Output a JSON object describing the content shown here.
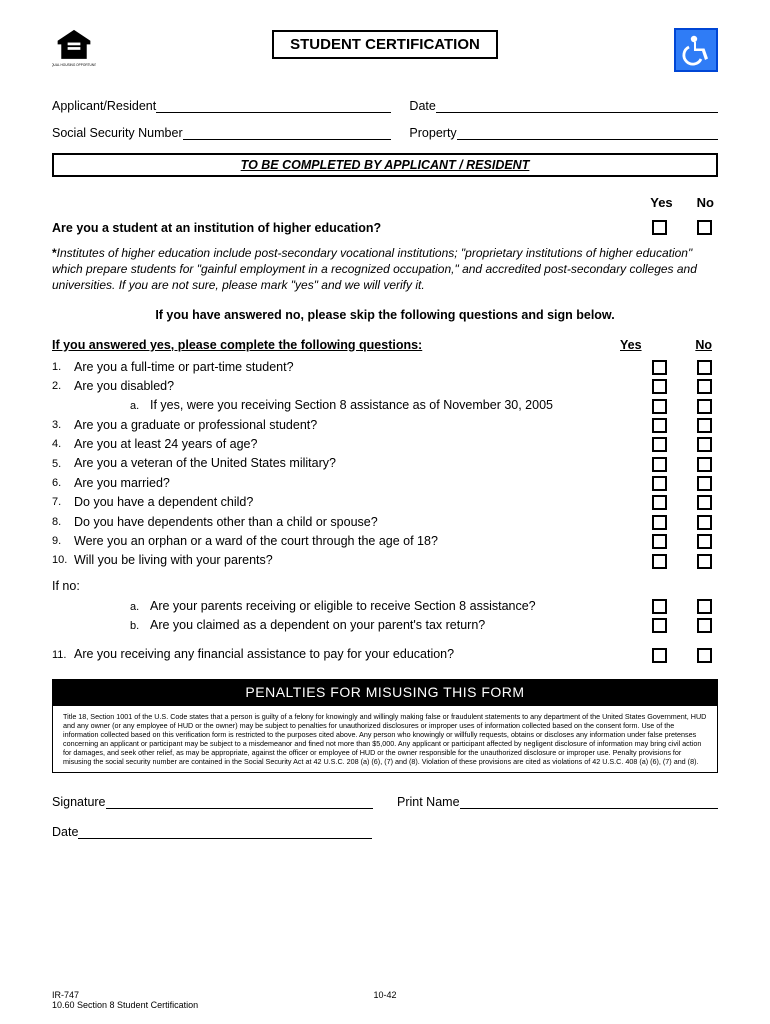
{
  "title": "STUDENT CERTIFICATION",
  "fields": {
    "applicant": "Applicant/Resident",
    "date": "Date",
    "ssn": "Social Security Number",
    "property": "Property"
  },
  "section_bar": "TO BE COMPLETED BY APPLICANT / RESIDENT",
  "yesno": {
    "yes": "Yes",
    "no": "No"
  },
  "q1": "Are you a student at an institution of higher education?",
  "note": "Institutes of higher education include post-secondary vocational institutions; \"proprietary institutions of higher education\" which prepare students for \"gainful employment in a recognized occupation,\" and accredited post-secondary colleges and universities.  If you are not sure, please mark \"yes\" and we will verify it.",
  "instruct": "If you have answered no, please skip the following questions and sign below.",
  "sub_header": "If you answered yes, please complete the following questions:",
  "questions": [
    {
      "n": "1.",
      "t": "Are you a full-time or part-time student?"
    },
    {
      "n": "2.",
      "t": "Are you disabled?"
    },
    {
      "n": "",
      "sub": "a.",
      "t": "If yes, were you receiving Section 8 assistance as of November 30, 2005"
    },
    {
      "n": "3.",
      "t": "Are you a graduate or professional student?"
    },
    {
      "n": "4.",
      "t": "Are you at least 24 years of age?"
    },
    {
      "n": "5.",
      "t": "Are you a veteran of the United States military?"
    },
    {
      "n": "6.",
      "t": "Are you married?"
    },
    {
      "n": "7.",
      "t": "Do you have a dependent child?"
    },
    {
      "n": "8.",
      "t": "Do you have dependents other than a child or spouse?"
    },
    {
      "n": "9.",
      "t": "Were you an orphan or a ward of the court through the age of 18?"
    },
    {
      "n": "10.",
      "t": "Will you be living with your parents?"
    }
  ],
  "ifno_label": "If no:",
  "ifno_subs": [
    {
      "sub": "a.",
      "t": "Are your parents receiving or eligible to receive Section 8 assistance?"
    },
    {
      "sub": "b.",
      "t": "Are you claimed as a dependent on your parent's tax return?"
    }
  ],
  "q11": {
    "n": "11.",
    "t": "Are you receiving any financial assistance to pay for your education?"
  },
  "penalty_title": "PENALTIES FOR MISUSING THIS  FORM",
  "penalty_text": "Title 18, Section 1001 of the U.S. Code states that a person is guilty of a felony for knowingly and willingly making false or fraudulent statements to any department of the United States Government, HUD and any owner (or any employee of HUD or the owner) may be subject to penalties for unauthorized disclosures or improper uses of information collected based on the consent form.  Use of the information collected based on this verification form is restricted to the purposes cited above.  Any person who knowingly or willfully requests, obtains or discloses any information under false pretenses concerning an applicant or participant may be subject to a misdemeanor and fined not more than $5,000.  Any applicant or participant affected by negligent disclosure of information may bring civil action for damages, and seek other relief, as may be appropriate, against the officer or employee of HUD or the owner responsible for the unauthorized disclosure or improper use.  Penalty provisions for misusing the social security number are contained in the Social Security Act at 42 U.S.C. 208 (a) (6), (7) and (8).  Violation of these provisions are cited as violations of 42 U.S.C. 408 (a) (6), (7) and (8).",
  "sig": {
    "signature": "Signature",
    "printname": "Print Name",
    "date": "Date"
  },
  "footer": {
    "left1": "IR-747",
    "left2": "10.60 Section 8 Student Certification",
    "center": "10-42"
  }
}
